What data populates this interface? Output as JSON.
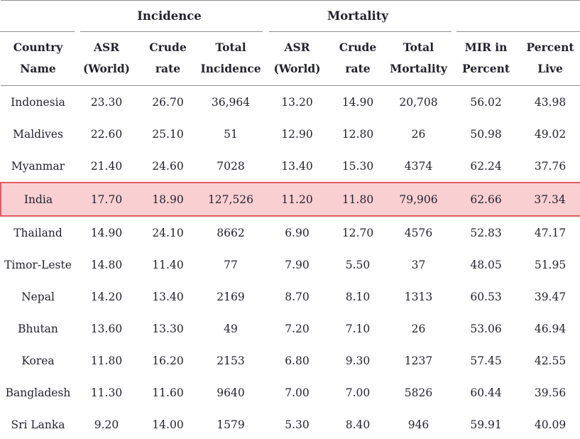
{
  "colors": {
    "text": "#23232e",
    "rule": "#8e8e8e",
    "highlight_bg": "#f9cfd1",
    "highlight_border": "#e25c60"
  },
  "table": {
    "groups": [
      {
        "label": "Incidence"
      },
      {
        "label": "Mortality"
      }
    ],
    "columns": [
      {
        "line1": "Country",
        "line2": "Name"
      },
      {
        "line1": "ASR",
        "line2": "(World)"
      },
      {
        "line1": "Crude",
        "line2": "rate"
      },
      {
        "line1": "Total",
        "line2": "Incidence"
      },
      {
        "line1": "ASR",
        "line2": "(World)"
      },
      {
        "line1": "Crude",
        "line2": "rate"
      },
      {
        "line1": "Total",
        "line2": "Mortality"
      },
      {
        "line1": "MIR in",
        "line2": "Percent"
      },
      {
        "line1": "Percent",
        "line2": "Live"
      }
    ],
    "rows": [
      {
        "country": "Indonesia",
        "values": [
          "23.30",
          "26.70",
          "36,964",
          "13.20",
          "14.90",
          "20,708",
          "56.02",
          "43.98"
        ],
        "highlighted": false
      },
      {
        "country": "Maldives",
        "values": [
          "22.60",
          "25.10",
          "51",
          "12.90",
          "12.80",
          "26",
          "50.98",
          "49.02"
        ],
        "highlighted": false
      },
      {
        "country": "Myanmar",
        "values": [
          "21.40",
          "24.60",
          "7028",
          "13.40",
          "15.30",
          "4374",
          "62.24",
          "37.76"
        ],
        "highlighted": false
      },
      {
        "country": "India",
        "values": [
          "17.70",
          "18.90",
          "127,526",
          "11.20",
          "11.80",
          "79,906",
          "62.66",
          "37.34"
        ],
        "highlighted": true
      },
      {
        "country": "Thailand",
        "values": [
          "14.90",
          "24.10",
          "8662",
          "6.90",
          "12.70",
          "4576",
          "52.83",
          "47.17"
        ],
        "highlighted": false
      },
      {
        "country": "Timor-Leste",
        "values": [
          "14.80",
          "11.40",
          "77",
          "7.90",
          "5.50",
          "37",
          "48.05",
          "51.95"
        ],
        "highlighted": false
      },
      {
        "country": "Nepal",
        "values": [
          "14.20",
          "13.40",
          "2169",
          "8.70",
          "8.10",
          "1313",
          "60.53",
          "39.47"
        ],
        "highlighted": false
      },
      {
        "country": "Bhutan",
        "values": [
          "13.60",
          "13.30",
          "49",
          "7.20",
          "7.10",
          "26",
          "53.06",
          "46.94"
        ],
        "highlighted": false
      },
      {
        "country": "Korea",
        "values": [
          "11.80",
          "16.20",
          "2153",
          "6.80",
          "9.30",
          "1237",
          "57.45",
          "42.55"
        ],
        "highlighted": false
      },
      {
        "country": "Bangladesh",
        "values": [
          "11.30",
          "11.60",
          "9640",
          "7.00",
          "7.00",
          "5826",
          "60.44",
          "39.56"
        ],
        "highlighted": false
      },
      {
        "country": "Sri Lanka",
        "values": [
          "9.20",
          "14.00",
          "1579",
          "5.30",
          "8.40",
          "946",
          "59.91",
          "40.09"
        ],
        "highlighted": false
      }
    ]
  }
}
